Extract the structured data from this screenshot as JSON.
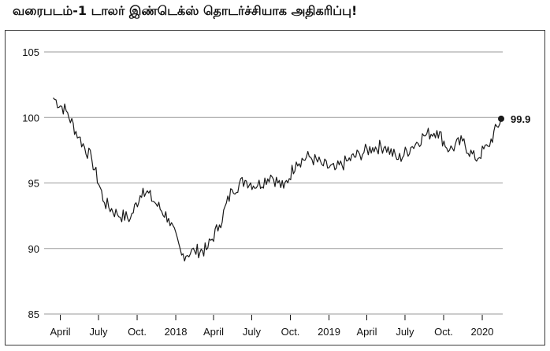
{
  "title": "வரைபடம்-1   டாலர் இண்டெக்ஸ் தொடர்ச்சியாக அதிகரிப்பு!",
  "colors": {
    "line": "#1a1a1a",
    "grid": "#9a9a9a",
    "text": "#111111"
  },
  "chart_data": {
    "type": "line",
    "title": "வரைபடம்-1   டாலர் இண்டெக்ஸ் தொடர்ச்சியாக அதிகரிப்பு!",
    "xlabel": "",
    "ylabel": "",
    "ylim": [
      85,
      105
    ],
    "yticks": [
      85,
      90,
      95,
      100,
      105
    ],
    "grid": true,
    "x_tick_labels": [
      "April",
      "July",
      "Oct.",
      "2018",
      "April",
      "July",
      "Oct.",
      "2019",
      "April",
      "July",
      "Oct.",
      "2020"
    ],
    "end_value_label": "99.9",
    "series": [
      {
        "x": [
          "2017-03",
          "2017-04",
          "2017-05",
          "2017-06",
          "2017-07",
          "2017-08",
          "2017-09",
          "2017-10",
          "2017-11",
          "2017-12",
          "2018-01",
          "2018-02",
          "2018-03",
          "2018-04",
          "2018-05",
          "2018-06",
          "2018-07",
          "2018-08",
          "2018-09",
          "2018-10",
          "2018-11",
          "2018-12",
          "2019-01",
          "2019-02",
          "2019-03",
          "2019-04",
          "2019-05",
          "2019-06",
          "2019-07",
          "2019-08",
          "2019-09",
          "2019-10",
          "2019-11",
          "2019-12",
          "2020-01",
          "2020-02"
        ],
        "values": [
          101.5,
          100.5,
          98.5,
          96.8,
          93.5,
          92.6,
          92.3,
          94.6,
          93.4,
          92.3,
          89.5,
          89.8,
          89.9,
          91.8,
          94.5,
          95.2,
          94.8,
          95.6,
          94.6,
          96.6,
          97.0,
          96.4,
          96.0,
          96.7,
          97.2,
          97.7,
          97.8,
          96.8,
          97.7,
          98.6,
          99.0,
          97.5,
          98.2,
          96.8,
          97.8,
          99.9
        ]
      }
    ]
  }
}
